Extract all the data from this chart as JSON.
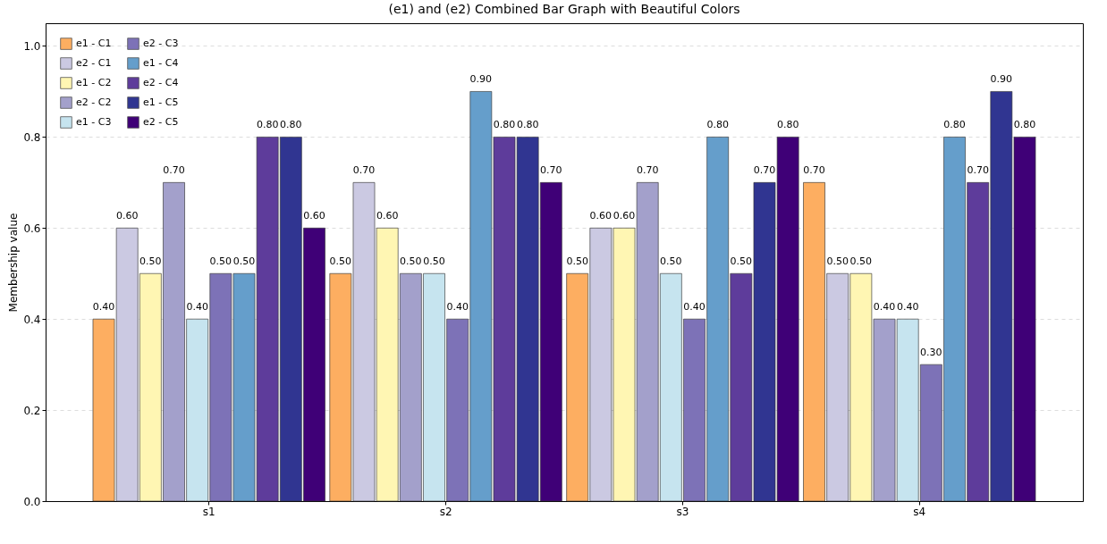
{
  "chart_data": {
    "type": "bar",
    "title": "(e1) and (e2) Combined Bar Graph with Beautiful Colors",
    "ylabel": "Membership value",
    "categories": [
      "s1",
      "s2",
      "s3",
      "s4"
    ],
    "series": [
      {
        "name": "e1 - C1",
        "color": "#fdae61",
        "values": [
          0.4,
          0.5,
          0.5,
          0.7
        ],
        "value_labels": [
          "0.40",
          "0.50",
          "0.50",
          "0.70"
        ]
      },
      {
        "name": "e2 - C1",
        "color": "#cbc9e2",
        "values": [
          0.6,
          0.7,
          0.6,
          0.5
        ],
        "value_labels": [
          "0.60",
          "0.70",
          "0.60",
          "0.50"
        ]
      },
      {
        "name": "e1 - C2",
        "color": "#fff6b3",
        "values": [
          0.5,
          0.6,
          0.6,
          0.5
        ],
        "value_labels": [
          "0.50",
          "0.60",
          "0.60",
          "0.50"
        ]
      },
      {
        "name": "e2 - C2",
        "color": "#a3a0cb",
        "values": [
          0.7,
          0.5,
          0.7,
          0.4
        ],
        "value_labels": [
          "0.70",
          "0.50",
          "0.70",
          "0.40"
        ]
      },
      {
        "name": "e1 - C3",
        "color": "#c6e4ef",
        "values": [
          0.4,
          0.5,
          0.5,
          0.4
        ],
        "value_labels": [
          "0.40",
          "0.50",
          "0.50",
          "0.40"
        ]
      },
      {
        "name": "e2 - C3",
        "color": "#7d72b7",
        "values": [
          0.5,
          0.4,
          0.4,
          0.3
        ],
        "value_labels": [
          "0.50",
          "0.40",
          "0.40",
          "0.30"
        ]
      },
      {
        "name": "e1 - C4",
        "color": "#659ecb",
        "values": [
          0.5,
          0.9,
          0.8,
          0.8
        ],
        "value_labels": [
          "0.50",
          "0.90",
          "0.80",
          "0.80"
        ]
      },
      {
        "name": "e2 - C4",
        "color": "#5e3c9b",
        "values": [
          0.8,
          0.8,
          0.5,
          0.7
        ],
        "value_labels": [
          "0.80",
          "0.80",
          "0.50",
          "0.70"
        ]
      },
      {
        "name": "e1 - C5",
        "color": "#303591",
        "values": [
          0.8,
          0.8,
          0.7,
          0.9
        ],
        "value_labels": [
          "0.80",
          "0.80",
          "0.70",
          "0.90"
        ]
      },
      {
        "name": "e2 - C5",
        "color": "#3f0077",
        "values": [
          0.6,
          0.7,
          0.8,
          0.8
        ],
        "value_labels": [
          "0.60",
          "0.70",
          "0.80",
          "0.80"
        ]
      }
    ],
    "ylim": [
      0,
      1.05
    ],
    "yticks": [
      {
        "value": 0,
        "label": "0.0"
      },
      0.2,
      0.4,
      0.6,
      0.8,
      {
        "value": 1,
        "label": "1.0"
      }
    ],
    "grid": "y",
    "legend": "top left"
  }
}
